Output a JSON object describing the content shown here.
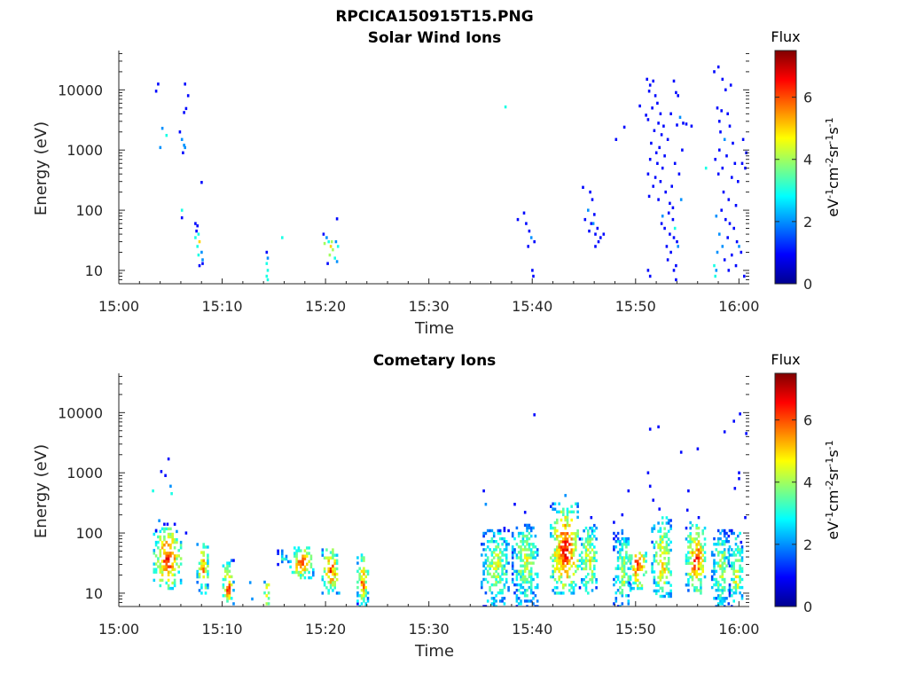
{
  "figure": {
    "title": "RPCICA150915T15.PNG"
  },
  "chart_data": [
    {
      "type": "heatmap",
      "title": "Solar Wind Ions",
      "xlabel": "Time",
      "ylabel": "Energy (eV)",
      "x_ticks": [
        "15:00",
        "15:10",
        "15:20",
        "15:30",
        "15:40",
        "15:50",
        "16:00"
      ],
      "x_range_minutes": [
        0,
        61
      ],
      "y_scale": "log",
      "y_ticks": [
        "10",
        "100",
        "1000",
        "10000"
      ],
      "y_range": [
        6,
        45000
      ],
      "colorbar": {
        "title": "Flux",
        "label": "eV-1cm-2sr-1s-1",
        "ticks": [
          "0",
          "2",
          "4",
          "6"
        ],
        "range": [
          0,
          7.5
        ],
        "colormap": "jet"
      },
      "cells": [
        [
          3.5,
          9500,
          1
        ],
        [
          3.7,
          12500,
          1
        ],
        [
          4.1,
          2300,
          2
        ],
        [
          3.9,
          1100,
          2
        ],
        [
          4.5,
          1750,
          3
        ],
        [
          5.8,
          2000,
          1
        ],
        [
          6.0,
          1500,
          2
        ],
        [
          6.2,
          1200,
          2
        ],
        [
          6.1,
          900,
          1
        ],
        [
          6.3,
          1100,
          2
        ],
        [
          6.2,
          4200,
          1
        ],
        [
          6.4,
          4900,
          1
        ],
        [
          6.3,
          12500,
          1
        ],
        [
          6.6,
          8000,
          1
        ],
        [
          7.9,
          290,
          1
        ],
        [
          6.0,
          100,
          3
        ],
        [
          6.0,
          75,
          1
        ],
        [
          7.3,
          60,
          1
        ],
        [
          7.5,
          55,
          1
        ],
        [
          7.4,
          45,
          1
        ],
        [
          7.6,
          40,
          3
        ],
        [
          7.3,
          35,
          3
        ],
        [
          7.7,
          30,
          5
        ],
        [
          7.5,
          25,
          3
        ],
        [
          7.9,
          20,
          2
        ],
        [
          7.6,
          18,
          3
        ],
        [
          8.0,
          15,
          2
        ],
        [
          8.0,
          13,
          1
        ],
        [
          7.7,
          12,
          1
        ],
        [
          14.2,
          20,
          1
        ],
        [
          14.3,
          16,
          2
        ],
        [
          14.2,
          13,
          3
        ],
        [
          14.3,
          10,
          3
        ],
        [
          14.2,
          8,
          3
        ],
        [
          14.3,
          7,
          3
        ],
        [
          15.7,
          35,
          3
        ],
        [
          19.7,
          40,
          1
        ],
        [
          20.0,
          35,
          2
        ],
        [
          20.2,
          30,
          3
        ],
        [
          19.8,
          28,
          4
        ],
        [
          20.4,
          25,
          5
        ],
        [
          20.6,
          22,
          4
        ],
        [
          20.3,
          18,
          4
        ],
        [
          20.8,
          16,
          3
        ],
        [
          21.0,
          14,
          2
        ],
        [
          20.1,
          13,
          1
        ],
        [
          20.9,
          30,
          2
        ],
        [
          21.1,
          25,
          3
        ],
        [
          21.0,
          72,
          1
        ],
        [
          20.5,
          30,
          4
        ],
        [
          37.3,
          5200,
          3
        ],
        [
          38.5,
          70,
          1
        ],
        [
          39.1,
          90,
          1
        ],
        [
          39.3,
          60,
          1
        ],
        [
          39.6,
          45,
          1
        ],
        [
          39.8,
          35,
          2
        ],
        [
          40.1,
          30,
          1
        ],
        [
          39.5,
          25,
          1
        ],
        [
          39.9,
          10,
          1
        ],
        [
          40.0,
          8,
          1
        ],
        [
          44.8,
          240,
          1
        ],
        [
          45.5,
          200,
          1
        ],
        [
          45.7,
          150,
          1
        ],
        [
          45.3,
          100,
          2
        ],
        [
          45.9,
          85,
          1
        ],
        [
          45.0,
          70,
          1
        ],
        [
          45.6,
          60,
          1
        ],
        [
          46.2,
          50,
          1
        ],
        [
          45.4,
          45,
          1
        ],
        [
          46.0,
          40,
          1
        ],
        [
          46.5,
          35,
          1
        ],
        [
          46.8,
          40,
          1
        ],
        [
          46.3,
          30,
          1
        ],
        [
          46.0,
          25,
          1
        ],
        [
          45.8,
          60,
          2
        ],
        [
          48.0,
          1500,
          1
        ],
        [
          48.8,
          2400,
          1
        ],
        [
          50.3,
          5400,
          1
        ],
        [
          50.9,
          3800,
          1
        ],
        [
          51.0,
          15000,
          1
        ],
        [
          51.3,
          12000,
          1
        ],
        [
          51.6,
          14000,
          1
        ],
        [
          51.2,
          9500,
          1
        ],
        [
          51.8,
          8000,
          1
        ],
        [
          52.0,
          6000,
          1
        ],
        [
          51.5,
          5000,
          1
        ],
        [
          52.3,
          4000,
          1
        ],
        [
          51.1,
          3200,
          1
        ],
        [
          52.1,
          2800,
          1
        ],
        [
          52.6,
          2500,
          1
        ],
        [
          51.7,
          2100,
          1
        ],
        [
          52.4,
          1800,
          1
        ],
        [
          53.0,
          1500,
          1
        ],
        [
          51.4,
          1300,
          1
        ],
        [
          52.2,
          1100,
          1
        ],
        [
          51.9,
          900,
          1
        ],
        [
          52.7,
          800,
          1
        ],
        [
          51.3,
          700,
          1
        ],
        [
          52.0,
          600,
          1
        ],
        [
          52.5,
          500,
          1
        ],
        [
          51.1,
          400,
          1
        ],
        [
          51.8,
          350,
          1
        ],
        [
          52.3,
          300,
          1
        ],
        [
          51.6,
          250,
          1
        ],
        [
          52.8,
          200,
          1
        ],
        [
          51.2,
          170,
          1
        ],
        [
          52.1,
          150,
          1
        ],
        [
          53.2,
          130,
          1
        ],
        [
          53.5,
          110,
          1
        ],
        [
          53.8,
          9000,
          1
        ],
        [
          54.0,
          8000,
          1
        ],
        [
          53.6,
          14000,
          1
        ],
        [
          53.3,
          4000,
          1
        ],
        [
          54.2,
          3500,
          2
        ],
        [
          54.5,
          2800,
          1
        ],
        [
          53.9,
          2600,
          1
        ],
        [
          54.8,
          2700,
          1
        ],
        [
          55.3,
          2500,
          1
        ],
        [
          54.4,
          1000,
          1
        ],
        [
          53.7,
          600,
          1
        ],
        [
          54.1,
          400,
          1
        ],
        [
          53.4,
          250,
          1
        ],
        [
          54.3,
          150,
          2
        ],
        [
          53.1,
          90,
          1
        ],
        [
          53.5,
          70,
          1
        ],
        [
          52.4,
          60,
          1
        ],
        [
          52.7,
          50,
          1
        ],
        [
          53.2,
          40,
          1
        ],
        [
          53.6,
          35,
          1
        ],
        [
          53.9,
          30,
          1
        ],
        [
          52.9,
          25,
          1
        ],
        [
          53.3,
          20,
          1
        ],
        [
          53.0,
          15,
          1
        ],
        [
          53.8,
          12,
          1
        ],
        [
          52.5,
          80,
          2
        ],
        [
          53.7,
          50,
          3
        ],
        [
          54.0,
          25,
          2
        ],
        [
          51.1,
          10,
          1
        ],
        [
          51.3,
          8,
          1
        ],
        [
          53.6,
          10,
          1
        ],
        [
          53.8,
          7,
          1
        ],
        [
          56.7,
          500,
          3
        ],
        [
          57.5,
          20000,
          1
        ],
        [
          57.9,
          24000,
          1
        ],
        [
          58.3,
          15000,
          1
        ],
        [
          58.6,
          10000,
          1
        ],
        [
          59.1,
          12000,
          1
        ],
        [
          57.8,
          5000,
          1
        ],
        [
          58.2,
          4500,
          1
        ],
        [
          58.0,
          3000,
          1
        ],
        [
          58.8,
          4000,
          1
        ],
        [
          59.0,
          2500,
          1
        ],
        [
          58.1,
          2000,
          1
        ],
        [
          58.5,
          1500,
          2
        ],
        [
          59.3,
          1300,
          1
        ],
        [
          58.0,
          1000,
          1
        ],
        [
          58.7,
          800,
          1
        ],
        [
          57.6,
          700,
          1
        ],
        [
          59.5,
          600,
          1
        ],
        [
          58.3,
          500,
          1
        ],
        [
          57.9,
          400,
          1
        ],
        [
          59.2,
          350,
          1
        ],
        [
          60.3,
          1500,
          1
        ],
        [
          60.6,
          900,
          1
        ],
        [
          60.2,
          600,
          1
        ],
        [
          60.5,
          500,
          1
        ],
        [
          59.8,
          300,
          1
        ],
        [
          58.4,
          200,
          1
        ],
        [
          58.9,
          150,
          1
        ],
        [
          59.6,
          120,
          1
        ],
        [
          58.2,
          100,
          1
        ],
        [
          57.7,
          80,
          2
        ],
        [
          58.6,
          70,
          1
        ],
        [
          59.0,
          60,
          1
        ],
        [
          59.4,
          50,
          1
        ],
        [
          58.0,
          40,
          2
        ],
        [
          58.8,
          35,
          1
        ],
        [
          59.7,
          30,
          1
        ],
        [
          58.3,
          25,
          2
        ],
        [
          57.8,
          20,
          2
        ],
        [
          59.2,
          18,
          1
        ],
        [
          58.5,
          15,
          1
        ],
        [
          59.9,
          25,
          2
        ],
        [
          60.1,
          20,
          1
        ],
        [
          57.5,
          12,
          3
        ],
        [
          57.7,
          10,
          2
        ],
        [
          59.6,
          12,
          1
        ],
        [
          58.9,
          10,
          1
        ],
        [
          60.4,
          8,
          1
        ],
        [
          57.6,
          8,
          3
        ]
      ]
    },
    {
      "type": "heatmap",
      "title": "Cometary Ions",
      "xlabel": "Time",
      "ylabel": "Energy (eV)",
      "x_ticks": [
        "15:00",
        "15:10",
        "15:20",
        "15:30",
        "15:40",
        "15:50",
        "16:00"
      ],
      "x_range_minutes": [
        0,
        61
      ],
      "y_scale": "log",
      "y_ticks": [
        "10",
        "100",
        "1000",
        "10000"
      ],
      "y_range": [
        6,
        45000
      ],
      "colorbar": {
        "title": "Flux",
        "label": "eV-1cm-2sr-1s-1",
        "ticks": [
          "0",
          "2",
          "4",
          "6"
        ],
        "range": [
          0,
          7.5
        ],
        "colormap": "jet"
      },
      "blobs": [
        {
          "t0": 3.3,
          "t1": 6.0,
          "e0": 12,
          "e1": 130,
          "peak": 6.6,
          "center": 35
        },
        {
          "t0": 7.5,
          "t1": 8.6,
          "e0": 10,
          "e1": 70,
          "peak": 6.0,
          "center": 25
        },
        {
          "t0": 10.0,
          "t1": 11.0,
          "e0": 6,
          "e1": 35,
          "peak": 6.4,
          "center": 12
        },
        {
          "t0": 14.0,
          "t1": 14.5,
          "e0": 6,
          "e1": 22,
          "peak": 6.2,
          "center": 10
        },
        {
          "t0": 15.3,
          "t1": 16.3,
          "e0": 30,
          "e1": 55,
          "peak": 3.2,
          "center": 40
        },
        {
          "t0": 16.5,
          "t1": 18.8,
          "e0": 18,
          "e1": 60,
          "peak": 6.4,
          "center": 33
        },
        {
          "t0": 19.6,
          "t1": 21.3,
          "e0": 10,
          "e1": 60,
          "peak": 6.3,
          "center": 22
        },
        {
          "t0": 23.0,
          "t1": 24.0,
          "e0": 6,
          "e1": 45,
          "peak": 6.2,
          "center": 14
        },
        {
          "t0": 35.0,
          "t1": 37.8,
          "e0": 6,
          "e1": 110,
          "peak": 4.6,
          "center": 30
        },
        {
          "t0": 38.0,
          "t1": 40.5,
          "e0": 6,
          "e1": 140,
          "peak": 4.6,
          "center": 40
        },
        {
          "t0": 41.7,
          "t1": 44.5,
          "e0": 10,
          "e1": 320,
          "peak": 6.9,
          "center": 45
        },
        {
          "t0": 44.5,
          "t1": 46.3,
          "e0": 10,
          "e1": 150,
          "peak": 5.0,
          "center": 30
        },
        {
          "t0": 47.8,
          "t1": 49.6,
          "e0": 6,
          "e1": 120,
          "peak": 4.5,
          "center": 20
        },
        {
          "t0": 49.3,
          "t1": 51.0,
          "e0": 12,
          "e1": 50,
          "peak": 7.1,
          "center": 35
        },
        {
          "t0": 51.5,
          "t1": 53.5,
          "e0": 8,
          "e1": 200,
          "peak": 5.4,
          "center": 30
        },
        {
          "t0": 54.8,
          "t1": 56.8,
          "e0": 10,
          "e1": 150,
          "peak": 6.4,
          "center": 35
        },
        {
          "t0": 57.3,
          "t1": 59.0,
          "e0": 6,
          "e1": 120,
          "peak": 4.6,
          "center": 25
        },
        {
          "t0": 59.0,
          "t1": 60.4,
          "e0": 6,
          "e1": 110,
          "peak": 4.8,
          "center": 20
        }
      ],
      "cells": [
        [
          3.2,
          500,
          3
        ],
        [
          3.5,
          110,
          1
        ],
        [
          3.8,
          160,
          2
        ],
        [
          4.3,
          140,
          1
        ],
        [
          4.6,
          140,
          1
        ],
        [
          5.3,
          140,
          1
        ],
        [
          4.0,
          1050,
          1
        ],
        [
          4.7,
          1700,
          1
        ],
        [
          5.0,
          450,
          3
        ],
        [
          4.9,
          600,
          2
        ],
        [
          4.4,
          900,
          1
        ],
        [
          6.4,
          100,
          1
        ],
        [
          12.6,
          15,
          2
        ],
        [
          12.8,
          8,
          2
        ],
        [
          40.1,
          9200,
          1
        ],
        [
          51.3,
          5300,
          1
        ],
        [
          52.1,
          5800,
          1
        ],
        [
          54.3,
          2200,
          1
        ],
        [
          55.9,
          2500,
          1
        ],
        [
          58.5,
          4800,
          1
        ],
        [
          59.4,
          7200,
          1
        ],
        [
          60.6,
          4500,
          1
        ],
        [
          60.0,
          9500,
          1
        ],
        [
          35.2,
          500,
          1
        ],
        [
          35.4,
          300,
          2
        ],
        [
          37.2,
          120,
          1
        ],
        [
          38.2,
          300,
          1
        ],
        [
          39.2,
          220,
          1
        ],
        [
          41.9,
          250,
          2
        ],
        [
          43.1,
          420,
          2
        ],
        [
          45.6,
          180,
          1
        ],
        [
          47.8,
          150,
          1
        ],
        [
          48.6,
          200,
          1
        ],
        [
          49.2,
          500,
          1
        ],
        [
          51.3,
          600,
          1
        ],
        [
          51.6,
          350,
          1
        ],
        [
          52.2,
          250,
          1
        ],
        [
          54.9,
          240,
          1
        ],
        [
          56.0,
          180,
          1
        ],
        [
          59.5,
          550,
          1
        ],
        [
          59.9,
          800,
          1
        ],
        [
          60.5,
          180,
          1
        ],
        [
          60.1,
          70,
          1
        ],
        [
          55.0,
          500,
          1
        ],
        [
          51.1,
          1000,
          1
        ],
        [
          59.9,
          1000,
          1
        ]
      ]
    }
  ]
}
